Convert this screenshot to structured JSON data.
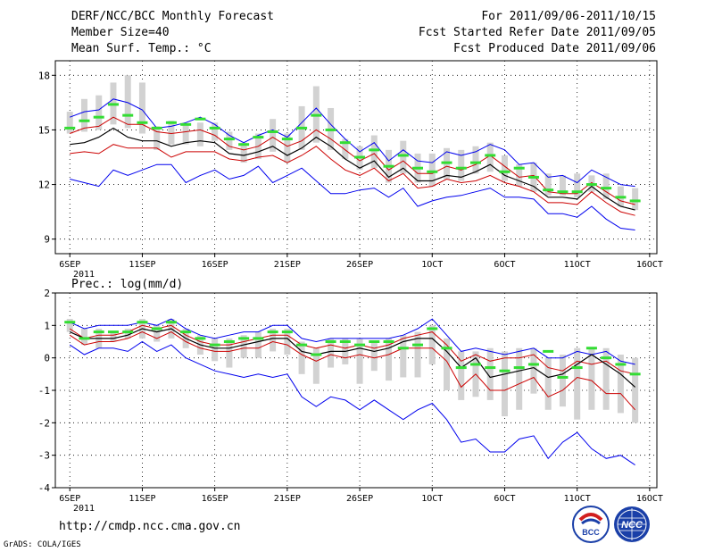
{
  "header": {
    "title": "DERF/NCC/BCC Monthly Forecast",
    "member_size": "Member Size=40",
    "variable": "Mean Surf. Temp.: °C",
    "period": "For 2011/09/06-2011/10/15",
    "started": "Fcst Started Refer Date 2011/09/05",
    "produced": "Fcst Produced Date 2011/09/06"
  },
  "footer": {
    "url": "http://cmdp.ncc.cma.gov.cn",
    "grads": "GrADS: COLA/IGES",
    "logo_bcc": "BCC",
    "logo_ncc": "NCC"
  },
  "colors": {
    "max": "#0000ee",
    "min": "#0000ee",
    "p75": "#cc0000",
    "p25": "#cc0000",
    "median": "#000000",
    "box": "#d2d2d2",
    "mean": "#33dd33"
  },
  "chart_data": [
    {
      "type": "line",
      "title": "Mean Surf. Temp.: °C",
      "x_tick_labels": [
        "6SEP",
        "11SEP",
        "16SEP",
        "21SEP",
        "26SEP",
        "1OCT",
        "6OCT",
        "11OCT",
        "16OCT"
      ],
      "x_tick_days": [
        1,
        6,
        11,
        16,
        21,
        26,
        31,
        36,
        41
      ],
      "x_year_label": "2011",
      "ylim": [
        8.2,
        18.8
      ],
      "y_ticks": [
        9,
        12,
        15,
        18
      ],
      "days": [
        1,
        2,
        3,
        4,
        5,
        6,
        7,
        8,
        9,
        10,
        11,
        12,
        13,
        14,
        15,
        16,
        17,
        18,
        19,
        20,
        21,
        22,
        23,
        24,
        25,
        26,
        27,
        28,
        29,
        30,
        31,
        32,
        33,
        34,
        35,
        36,
        37,
        38,
        39,
        40
      ],
      "series": [
        {
          "name": "max",
          "values": [
            15.7,
            16.0,
            16.1,
            16.7,
            16.5,
            16.1,
            15.1,
            15.2,
            15.4,
            15.7,
            15.3,
            14.7,
            14.3,
            14.7,
            15.0,
            14.6,
            15.4,
            16.2,
            15.3,
            14.5,
            13.8,
            14.3,
            13.3,
            13.9,
            13.3,
            13.2,
            13.8,
            13.6,
            13.8,
            14.2,
            13.9,
            13.1,
            13.2,
            12.4,
            12.5,
            12.1,
            12.8,
            12.4,
            12.0,
            11.9
          ]
        },
        {
          "name": "p75",
          "values": [
            14.8,
            15.1,
            15.2,
            15.7,
            15.3,
            15.3,
            14.9,
            14.8,
            14.9,
            15.0,
            14.7,
            14.1,
            13.9,
            14.1,
            14.6,
            14.1,
            14.4,
            15.0,
            14.5,
            13.9,
            13.3,
            13.7,
            12.8,
            13.3,
            12.6,
            12.6,
            13.0,
            12.8,
            13.1,
            13.6,
            13.0,
            12.4,
            12.5,
            11.6,
            11.5,
            11.5,
            12.1,
            11.6,
            11.1,
            10.9
          ]
        },
        {
          "name": "median",
          "values": [
            14.2,
            14.3,
            14.6,
            15.1,
            14.6,
            14.4,
            14.4,
            14.1,
            14.3,
            14.4,
            14.3,
            13.7,
            13.6,
            13.8,
            14.1,
            13.6,
            14.0,
            14.6,
            14.1,
            13.4,
            12.9,
            13.3,
            12.4,
            12.9,
            12.2,
            12.2,
            12.5,
            12.4,
            12.7,
            13.1,
            12.5,
            12.2,
            11.9,
            11.3,
            11.3,
            11.2,
            11.9,
            11.3,
            10.8,
            10.6
          ]
        },
        {
          "name": "p25",
          "values": [
            13.7,
            13.8,
            13.7,
            14.2,
            14.0,
            14.0,
            14.0,
            13.5,
            13.8,
            13.8,
            13.8,
            13.4,
            13.3,
            13.5,
            13.6,
            13.2,
            13.6,
            14.1,
            13.4,
            12.8,
            12.5,
            12.9,
            12.2,
            12.6,
            11.8,
            11.9,
            12.3,
            12.1,
            12.2,
            12.5,
            12.1,
            11.9,
            11.6,
            11.0,
            11.0,
            10.9,
            11.6,
            11.0,
            10.5,
            10.3
          ]
        },
        {
          "name": "min",
          "values": [
            12.3,
            12.1,
            11.9,
            12.8,
            12.5,
            12.8,
            13.1,
            13.1,
            12.1,
            12.5,
            12.8,
            12.3,
            12.5,
            13.0,
            12.1,
            12.5,
            12.9,
            12.2,
            11.5,
            11.5,
            11.7,
            11.8,
            11.3,
            11.8,
            10.8,
            11.1,
            11.3,
            11.4,
            11.6,
            11.8,
            11.3,
            11.3,
            11.2,
            10.4,
            10.4,
            10.2,
            10.8,
            10.1,
            9.6,
            9.5
          ]
        },
        {
          "name": "mean",
          "values": [
            15.1,
            15.5,
            15.7,
            16.4,
            15.8,
            15.4,
            15.1,
            15.4,
            15.3,
            15.6,
            15.1,
            14.5,
            14.2,
            14.6,
            14.9,
            14.5,
            15.1,
            15.8,
            15.0,
            14.3,
            13.5,
            13.9,
            13.0,
            13.6,
            12.9,
            12.7,
            13.2,
            12.9,
            13.2,
            13.6,
            12.7,
            12.9,
            12.4,
            11.7,
            11.6,
            11.6,
            12.0,
            11.8,
            11.3,
            11.1
          ]
        },
        {
          "name": "box_top",
          "values": [
            16.0,
            16.7,
            16.9,
            17.6,
            18.0,
            17.6,
            15.2,
            15.5,
            15.3,
            15.4,
            15.4,
            14.9,
            14.3,
            14.8,
            15.6,
            14.8,
            16.3,
            17.4,
            16.2,
            14.5,
            14.1,
            14.7,
            13.9,
            14.4,
            13.7,
            13.7,
            14.0,
            13.9,
            14.1,
            14.3,
            13.6,
            13.1,
            13.2,
            12.6,
            12.5,
            12.6,
            12.5,
            12.6,
            11.9,
            11.8
          ]
        },
        {
          "name": "box_bottom",
          "values": [
            14.8,
            14.9,
            15.0,
            15.3,
            15.1,
            14.8,
            13.9,
            14.2,
            14.2,
            14.1,
            14.4,
            13.9,
            13.2,
            13.4,
            13.8,
            13.2,
            13.9,
            14.3,
            13.9,
            13.4,
            12.8,
            12.9,
            12.1,
            12.6,
            12.1,
            11.9,
            12.3,
            12.2,
            12.6,
            12.7,
            12.2,
            11.9,
            11.6,
            11.4,
            11.4,
            11.3,
            11.6,
            11.2,
            10.8,
            10.6
          ]
        }
      ]
    },
    {
      "type": "line",
      "title": "Prec.: log(mm/d)",
      "x_tick_labels": [
        "6SEP",
        "11SEP",
        "16SEP",
        "21SEP",
        "26SEP",
        "1OCT",
        "6OCT",
        "11OCT",
        "16OCT"
      ],
      "x_tick_days": [
        1,
        6,
        11,
        16,
        21,
        26,
        31,
        36,
        41
      ],
      "x_year_label": "2011",
      "ylim": [
        -4,
        2
      ],
      "y_ticks": [
        -4,
        -3,
        -2,
        -1,
        0,
        1,
        2
      ],
      "days": [
        1,
        2,
        3,
        4,
        5,
        6,
        7,
        8,
        9,
        10,
        11,
        12,
        13,
        14,
        15,
        16,
        17,
        18,
        19,
        20,
        21,
        22,
        23,
        24,
        25,
        26,
        27,
        28,
        29,
        30,
        31,
        32,
        33,
        34,
        35,
        36,
        37,
        38,
        39,
        40
      ],
      "series": [
        {
          "name": "max",
          "values": [
            1.1,
            0.9,
            1.0,
            1.0,
            1.0,
            1.1,
            1.0,
            1.2,
            0.9,
            0.7,
            0.6,
            0.7,
            0.8,
            0.8,
            1.0,
            1.0,
            0.6,
            0.5,
            0.6,
            0.6,
            0.6,
            0.6,
            0.6,
            0.7,
            0.9,
            1.2,
            0.7,
            0.2,
            0.3,
            0.2,
            0.1,
            0.2,
            0.3,
            0.0,
            0.0,
            0.2,
            0.1,
            0.2,
            -0.1,
            -0.2
          ]
        },
        {
          "name": "p75",
          "values": [
            0.9,
            0.6,
            0.7,
            0.7,
            0.8,
            1.0,
            0.9,
            1.0,
            0.7,
            0.5,
            0.4,
            0.4,
            0.5,
            0.6,
            0.7,
            0.7,
            0.4,
            0.3,
            0.4,
            0.3,
            0.4,
            0.3,
            0.4,
            0.6,
            0.7,
            0.8,
            0.4,
            -0.1,
            0.1,
            -0.1,
            0.0,
            0.0,
            0.1,
            -0.3,
            -0.4,
            -0.1,
            -0.2,
            -0.1,
            -0.4,
            -0.5
          ]
        },
        {
          "name": "median",
          "values": [
            0.8,
            0.6,
            0.6,
            0.6,
            0.7,
            0.9,
            0.8,
            0.9,
            0.6,
            0.4,
            0.3,
            0.3,
            0.4,
            0.5,
            0.6,
            0.6,
            0.2,
            0.1,
            0.2,
            0.2,
            0.3,
            0.2,
            0.3,
            0.5,
            0.6,
            0.6,
            0.2,
            -0.3,
            0.0,
            -0.6,
            -0.5,
            -0.4,
            -0.3,
            -0.6,
            -0.5,
            -0.2,
            0.1,
            -0.2,
            -0.5,
            -0.9
          ]
        },
        {
          "name": "p25",
          "values": [
            0.7,
            0.4,
            0.5,
            0.5,
            0.6,
            0.8,
            0.6,
            0.8,
            0.5,
            0.3,
            0.2,
            0.2,
            0.3,
            0.3,
            0.5,
            0.4,
            0.1,
            -0.1,
            0.1,
            0.0,
            0.1,
            0.0,
            0.1,
            0.3,
            0.3,
            0.3,
            -0.1,
            -0.9,
            -0.5,
            -1.0,
            -1.0,
            -0.8,
            -0.6,
            -1.2,
            -1.0,
            -0.6,
            -0.7,
            -1.1,
            -1.1,
            -1.6
          ]
        },
        {
          "name": "min",
          "values": [
            0.4,
            0.1,
            0.3,
            0.3,
            0.2,
            0.5,
            0.2,
            0.4,
            0.0,
            -0.2,
            -0.4,
            -0.5,
            -0.6,
            -0.5,
            -0.6,
            -0.5,
            -1.2,
            -1.5,
            -1.2,
            -1.3,
            -1.6,
            -1.3,
            -1.6,
            -1.9,
            -1.6,
            -1.4,
            -1.9,
            -2.6,
            -2.5,
            -2.9,
            -2.9,
            -2.5,
            -2.4,
            -3.1,
            -2.6,
            -2.3,
            -2.8,
            -3.1,
            -3.0,
            -3.3
          ]
        },
        {
          "name": "mean",
          "values": [
            1.1,
            0.6,
            0.8,
            0.8,
            0.8,
            1.1,
            0.9,
            1.1,
            0.8,
            0.6,
            0.4,
            0.5,
            0.6,
            0.6,
            0.8,
            0.8,
            0.4,
            0.1,
            0.5,
            0.5,
            0.4,
            0.5,
            0.5,
            0.3,
            0.4,
            0.9,
            0.3,
            -0.3,
            -0.2,
            -0.3,
            -0.4,
            -0.3,
            -0.2,
            0.2,
            -0.6,
            -0.3,
            0.3,
            0.0,
            -0.2,
            -0.5
          ]
        },
        {
          "name": "box_top",
          "values": [
            1.2,
            0.9,
            0.9,
            0.8,
            0.9,
            1.2,
            1.0,
            1.2,
            0.9,
            0.7,
            0.6,
            0.6,
            0.7,
            0.8,
            0.9,
            0.9,
            0.5,
            0.3,
            0.6,
            0.6,
            0.6,
            0.5,
            0.6,
            0.7,
            0.8,
            1.0,
            0.6,
            0.2,
            0.2,
            0.3,
            0.2,
            0.3,
            0.3,
            0.0,
            0.1,
            0.3,
            0.3,
            0.3,
            0.1,
            0.0
          ]
        },
        {
          "name": "box_bottom",
          "values": [
            0.8,
            0.4,
            0.3,
            0.5,
            0.6,
            0.6,
            0.5,
            0.6,
            0.3,
            0.1,
            -0.1,
            -0.3,
            0.0,
            0.0,
            0.2,
            0.1,
            -0.5,
            -0.8,
            -0.3,
            -0.2,
            -0.8,
            -0.4,
            -0.7,
            -0.6,
            -0.6,
            -0.2,
            -1.0,
            -1.3,
            -1.2,
            -1.3,
            -1.8,
            -1.6,
            -1.1,
            -1.6,
            -1.5,
            -1.9,
            -1.6,
            -1.6,
            -1.7,
            -2.0
          ]
        }
      ]
    }
  ]
}
